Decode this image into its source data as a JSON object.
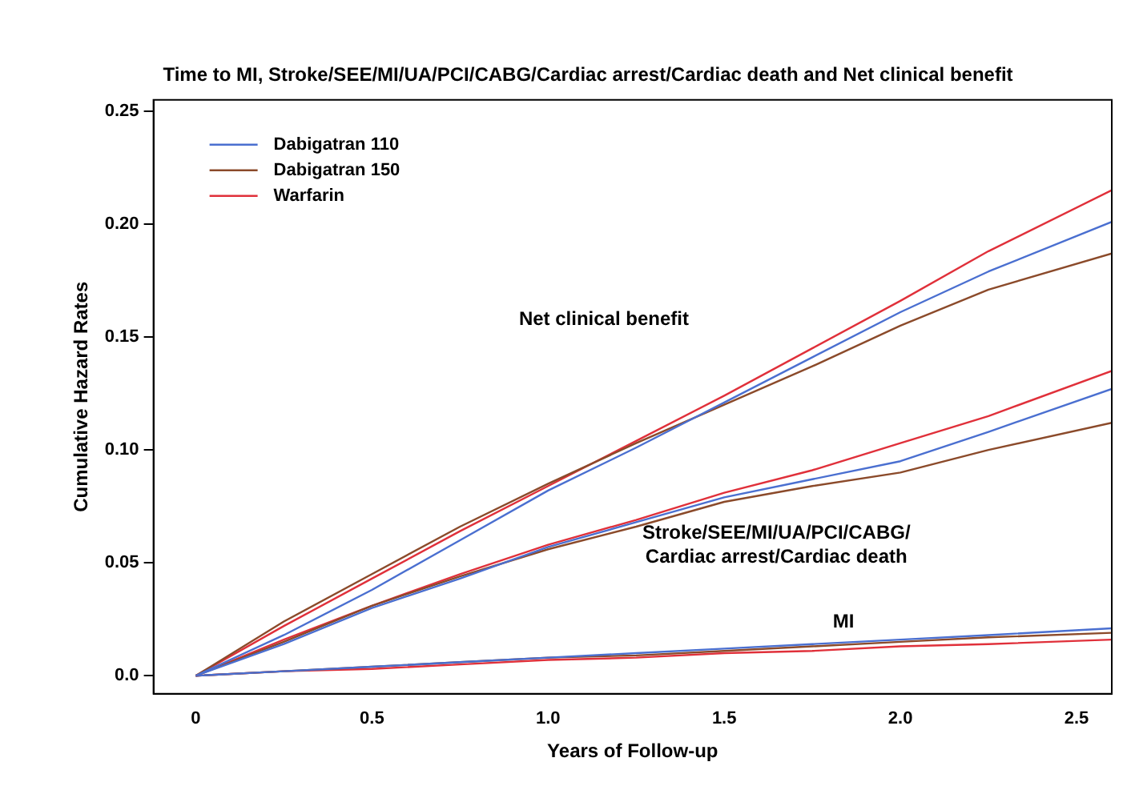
{
  "chart_data": {
    "type": "line",
    "title": "Time to MI, Stroke/SEE/MI/UA/PCI/CABG/Cardiac arrest/Cardiac death and Net clinical benefit",
    "xlabel": "Years of Follow-up",
    "ylabel": "Cumulative Hazard Rates",
    "x": [
      0,
      0.25,
      0.5,
      0.75,
      1.0,
      1.25,
      1.5,
      1.75,
      2.0,
      2.25,
      2.6
    ],
    "series": [
      {
        "name": "Dabigatran 110",
        "color": "#4a6fd0",
        "values": [
          0,
          0.018,
          0.038,
          0.06,
          0.082,
          0.101,
          0.121,
          0.141,
          0.161,
          0.179,
          0.201
        ]
      },
      {
        "name": "Dabigatran 150",
        "color": "#8b4a2a",
        "values": [
          0,
          0.024,
          0.045,
          0.066,
          0.085,
          0.103,
          0.12,
          0.137,
          0.155,
          0.171,
          0.187
        ]
      },
      {
        "name": "Warfarin",
        "color": "#e0303a",
        "values": [
          0,
          0.022,
          0.043,
          0.064,
          0.084,
          0.104,
          0.124,
          0.145,
          0.166,
          0.188,
          0.215
        ]
      },
      {
        "color": "#4a6fd0",
        "values": [
          0,
          0.014,
          0.03,
          0.043,
          0.057,
          0.068,
          0.079,
          0.087,
          0.095,
          0.108,
          0.127
        ]
      },
      {
        "color": "#8b4a2a",
        "values": [
          0,
          0.015,
          0.031,
          0.044,
          0.056,
          0.066,
          0.077,
          0.084,
          0.09,
          0.1,
          0.112
        ]
      },
      {
        "color": "#e0303a",
        "values": [
          0,
          0.016,
          0.031,
          0.045,
          0.058,
          0.069,
          0.081,
          0.091,
          0.103,
          0.115,
          0.135
        ]
      },
      {
        "color": "#4a6fd0",
        "values": [
          0,
          0.002,
          0.004,
          0.006,
          0.008,
          0.01,
          0.012,
          0.014,
          0.016,
          0.018,
          0.021
        ]
      },
      {
        "color": "#8b4a2a",
        "values": [
          0,
          0.002,
          0.004,
          0.006,
          0.008,
          0.009,
          0.011,
          0.013,
          0.015,
          0.017,
          0.019
        ]
      },
      {
        "color": "#e0303a",
        "values": [
          0,
          0.002,
          0.003,
          0.005,
          0.007,
          0.008,
          0.01,
          0.011,
          0.013,
          0.014,
          0.016
        ]
      }
    ],
    "annotations": [
      "Net clinical benefit",
      "Stroke/SEE/MI/UA/PCI/CABG/\nCardiac arrest/Cardiac death",
      "MI"
    ],
    "xlim": [
      -0.12,
      2.6
    ],
    "xticks": [
      0,
      0.5,
      {
        "value": 1,
        "label": "1.0"
      },
      1.5,
      {
        "value": 2,
        "label": "2.0"
      },
      2.5
    ],
    "ylim": [
      -0.008,
      0.255
    ],
    "yticks": [
      {
        "value": 0,
        "label": "0.0"
      },
      0.05,
      {
        "value": 0.1,
        "label": "0.10"
      },
      0.15,
      {
        "value": 0.2,
        "label": "0.20"
      },
      0.25
    ],
    "legend": "top left",
    "grid": false,
    "marker": "none",
    "line_style": "solid"
  }
}
